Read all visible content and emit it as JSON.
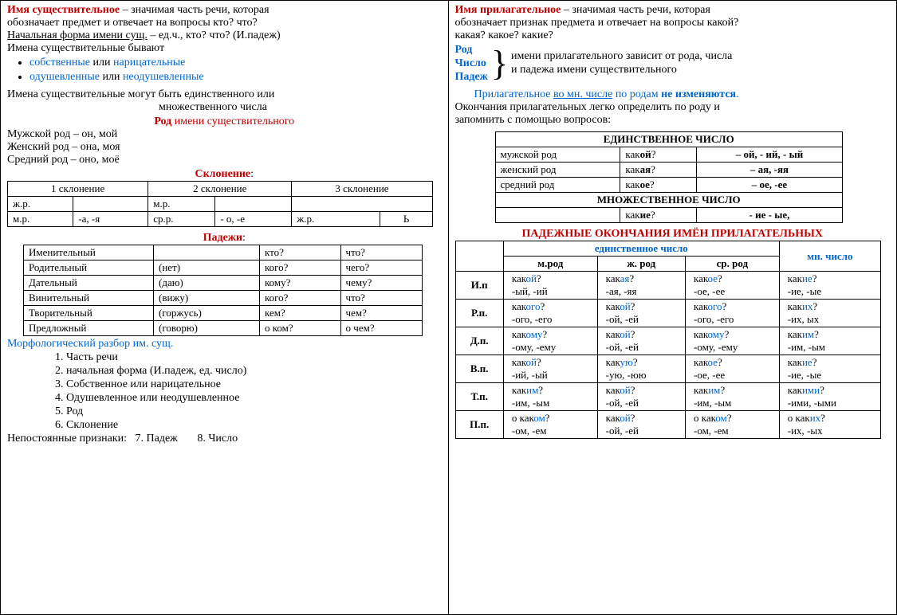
{
  "left": {
    "h1_red": "Имя существительное",
    "h1_rest": " – значимая часть речи, которая",
    "l2": "обозначает предмет и отвечает на вопросы кто? что?",
    "l3_u": "Начальная форма имени сущ.",
    "l3_rest": " – ед.ч., кто? что? (И.падеж)",
    "l4": "Имена существительные  бывают",
    "b1a": "собственные",
    "b1mid": " или ",
    "b1b": "нарицательные",
    "b2a": "одушевленные",
    "b2mid": " или ",
    "b2b": "неодушевленные",
    "l6a": "Имена существительные  могут быть единственного  или",
    "l6b": "множественного  числа",
    "rod_hdr_pre": "Род ",
    "rod_hdr_rest": "имени существительного",
    "rod1": "Мужской род – он, мой",
    "rod2": "Женский род – она, моя",
    "rod3": "Средний род – оно, моё",
    "skl_hdr": "Склонение",
    "skl": {
      "h1": "1 склонение",
      "h2": "2 склонение",
      "h3": "3 склонение",
      "r1c1": "ж.р.",
      "r1c2": "",
      "r1c3": "м.р.",
      "r1c4": "",
      "r1c5": "",
      "r2c1": "м.р.",
      "r2c2": "-а, -я",
      "r2c3": "ср.р.",
      "r2c4": "- о, -е",
      "r2c5": "ж.р.",
      "r2c6": "Ь"
    },
    "pad_hdr": "Падежи",
    "pad": [
      [
        "Именительный",
        "",
        "кто?",
        "что?"
      ],
      [
        "Родительный",
        "(нет)",
        "кого?",
        "чего?"
      ],
      [
        "Дательный",
        "(даю)",
        "кому?",
        "чему?"
      ],
      [
        "Винительный",
        "(вижу)",
        "кого?",
        "что?"
      ],
      [
        "Творительный",
        "(горжусь)",
        "кем?",
        "чем?"
      ],
      [
        "Предложный",
        "(говорю)",
        "о ком?",
        "о чем?"
      ]
    ],
    "morf_hdr": "Морфологический разбор им. сущ.",
    "morf": [
      "1. Часть речи",
      "2. начальная форма (И.падеж, ед. число)",
      "3. Собственное или нарицательное",
      "4. Одушевленное или неодушевленное",
      "5. Род",
      "6. Склонение"
    ],
    "morf_np": "Непостоянные признаки:   7. Падеж       8. Число"
  },
  "right": {
    "h1_red": "Имя прилагательное",
    "h1_rest": " – значимая часть речи, которая",
    "l2": "обозначает признак предмета и отвечает на вопросы какой?",
    "l3": "какая? какое? какие?",
    "rcp_r": "Род",
    "rcp_c": "Число",
    "rcp_p": "Падеж",
    "rcp_t1": "имени прилагательного зависит от рода, числа",
    "rcp_t2": "и падежа имени существительного",
    "note_a": "Прилагательное ",
    "note_u": "во мн. числе",
    "note_b": " по родам ",
    "note_bold": "не изменяются",
    "note_dot": ".",
    "l7": "Окончания прилагательных легко определить по роду и",
    "l8": "запомнить с помощью вопросов:",
    "t1": {
      "hdr_sg": "ЕДИНСТВЕННОЕ ЧИСЛО",
      "r1c1": "мужской род",
      "r1c2a": "как",
      "r1c2b": "ой",
      "r1c2c": "?",
      "r1c3": "– ой,  - ий,  - ый",
      "r2c1": "женский род",
      "r2c2a": "как",
      "r2c2b": "ая",
      "r2c2c": "?",
      "r2c3": "– ая,  -яя",
      "r3c1": "средний род",
      "r3c2a": "как",
      "r3c2b": "ое",
      "r3c2c": "?",
      "r3c3": "– ое, -ее",
      "hdr_pl": "МНОЖЕСТВЕННОЕ ЧИСЛО",
      "r4c2a": "как",
      "r4c2b": "ие",
      "r4c2c": "?",
      "r4c3": "- ие - ые,"
    },
    "t2_hdr": "ПАДЕЖНЫЕ ОКОНЧАНИЯ ИМЁН ПРИЛАГАТЕЛЬНЫХ",
    "t2": {
      "sg": "единственное  число",
      "pl": "мн. число",
      "m": "м.род",
      "zh": "ж. род",
      "sr": "ср. род",
      "rows": [
        {
          "p": "И.п",
          "m1": "какой?",
          "m1b": "ой",
          "m2": "-ый, -ий",
          "z1": "какая?",
          "z1b": "ая",
          "z2": "-ая, -яя",
          "s1": "какое?",
          "s1b": "ое",
          "s2": "-ое, -ее",
          "pl1": "какие?",
          "pl1b": "ие",
          "pl2": "-ие, -ые"
        },
        {
          "p": "Р.п.",
          "m1": "какого?",
          "m1b": "ого",
          "m2": "-ого, -его",
          "z1": "какой?",
          "z1b": "ой",
          "z2": "-ой, -ей",
          "s1": "какого?",
          "s1b": "ого",
          "s2": "-ого, -его",
          "pl1": "каких?",
          "pl1b": "их",
          "pl2": "-их, ых"
        },
        {
          "p": "Д.п.",
          "m1": "какому?",
          "m1b": "ому",
          "m2": "-ому, -ему",
          "z1": "какой?",
          "z1b": "ой",
          "z2": "-ой, -ей",
          "s1": "какому?",
          "s1b": "ому",
          "s2": "-ому, -ему",
          "pl1": "каким?",
          "pl1b": "им",
          "pl2": "-им, -ым"
        },
        {
          "p": "В.п.",
          "m1": "какой?",
          "m1b": "ой",
          "m2": "-ий, -ый",
          "z1": "какую?",
          "z1b": "ую",
          "z2": "-ую, -юю",
          "s1": "какое?",
          "s1b": "ое",
          "s2": "-ое, -ее",
          "pl1": "какие?",
          "pl1b": "ие",
          "pl2": "-ие, -ые"
        },
        {
          "p": "Т.п.",
          "m1": "каким?",
          "m1b": "им",
          "m2": "-им, -ым",
          "z1": "какой?",
          "z1b": "ой",
          "z2": "-ой, -ей",
          "s1": "каким?",
          "s1b": "им",
          "s2": "-им, -ым",
          "pl1": "какими?",
          "pl1b": "ими",
          "pl2": "-ими, -ыми"
        },
        {
          "p": "П.п.",
          "m1": "о каком?",
          "m1b": "ом",
          "m2": "-ом, -ем",
          "z1": "какой?",
          "z1b": "ой",
          "z2": "-ой, -ей",
          "s1": "о каком?",
          "s1b": "ом",
          "s2": "-ом, -ем",
          "pl1": "о каких?",
          "pl1b": "их",
          "pl2": "-их, -ых"
        }
      ]
    }
  }
}
